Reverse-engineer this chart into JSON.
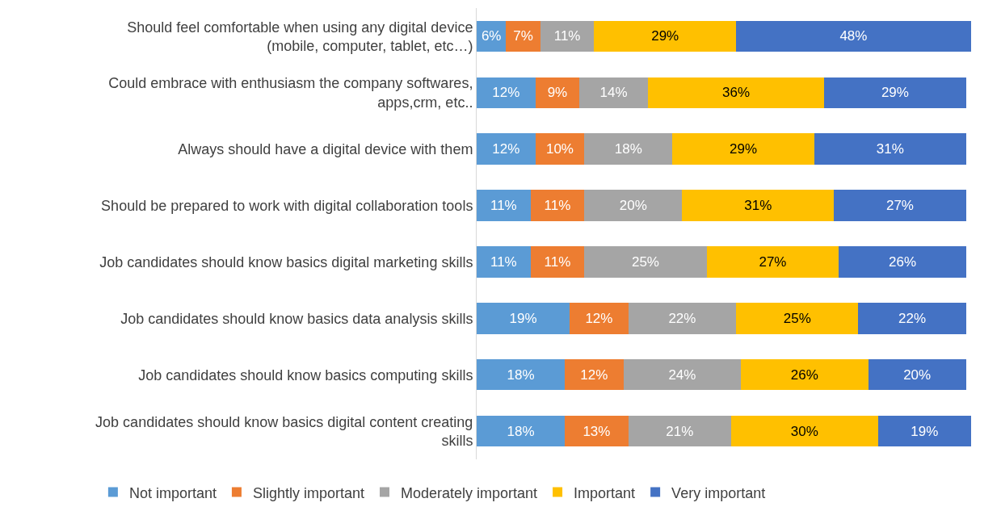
{
  "chart_data": {
    "type": "bar",
    "orientation": "horizontal",
    "stacked": true,
    "legend": "bottom",
    "categories": [
      "Should feel comfortable when using any digital device (mobile, computer, tablet, etc…)",
      "Could embrace with enthusiasm the company softwares, apps,crm, etc..",
      "Always should have a digital device with them",
      "Should be prepared to work with digital collaboration tools",
      "Job candidates should know basics digital marketing skills",
      "Job candidates should know basics data analysis skills",
      "Job candidates should know basics computing skills",
      "Job candidates should know basics digital content creating skills"
    ],
    "series": [
      {
        "name": "Not important",
        "color": "#5b9bd5",
        "values": [
          6,
          12,
          12,
          11,
          11,
          19,
          18,
          18
        ],
        "value_labels": [
          "6%",
          "12%",
          "12%",
          "11%",
          "11%",
          "19%",
          "18%",
          "18%"
        ]
      },
      {
        "name": "Slightly important",
        "color": "#ed7d31",
        "values": [
          7,
          9,
          10,
          11,
          11,
          12,
          12,
          13
        ],
        "value_labels": [
          "7%",
          "9%",
          "10%",
          "11%",
          "11%",
          "12%",
          "12%",
          "13%"
        ]
      },
      {
        "name": "Moderately important",
        "color": "#a5a5a5",
        "values": [
          11,
          14,
          18,
          20,
          25,
          22,
          24,
          21
        ],
        "value_labels": [
          "11%",
          "14%",
          "18%",
          "20%",
          "25%",
          "22%",
          "24%",
          "21%"
        ]
      },
      {
        "name": "Important",
        "color": "#ffc000",
        "values": [
          29,
          36,
          29,
          31,
          27,
          25,
          26,
          30
        ],
        "value_labels": [
          "29%",
          "36%",
          "29%",
          "31%",
          "27%",
          "25%",
          "26%",
          "30%"
        ]
      },
      {
        "name": "Very important",
        "color": "#4472c4",
        "values": [
          48,
          29,
          31,
          27,
          26,
          22,
          20,
          19
        ],
        "value_labels": [
          "48%",
          "29%",
          "31%",
          "27%",
          "26%",
          "22%",
          "20%",
          "19%"
        ]
      }
    ]
  }
}
